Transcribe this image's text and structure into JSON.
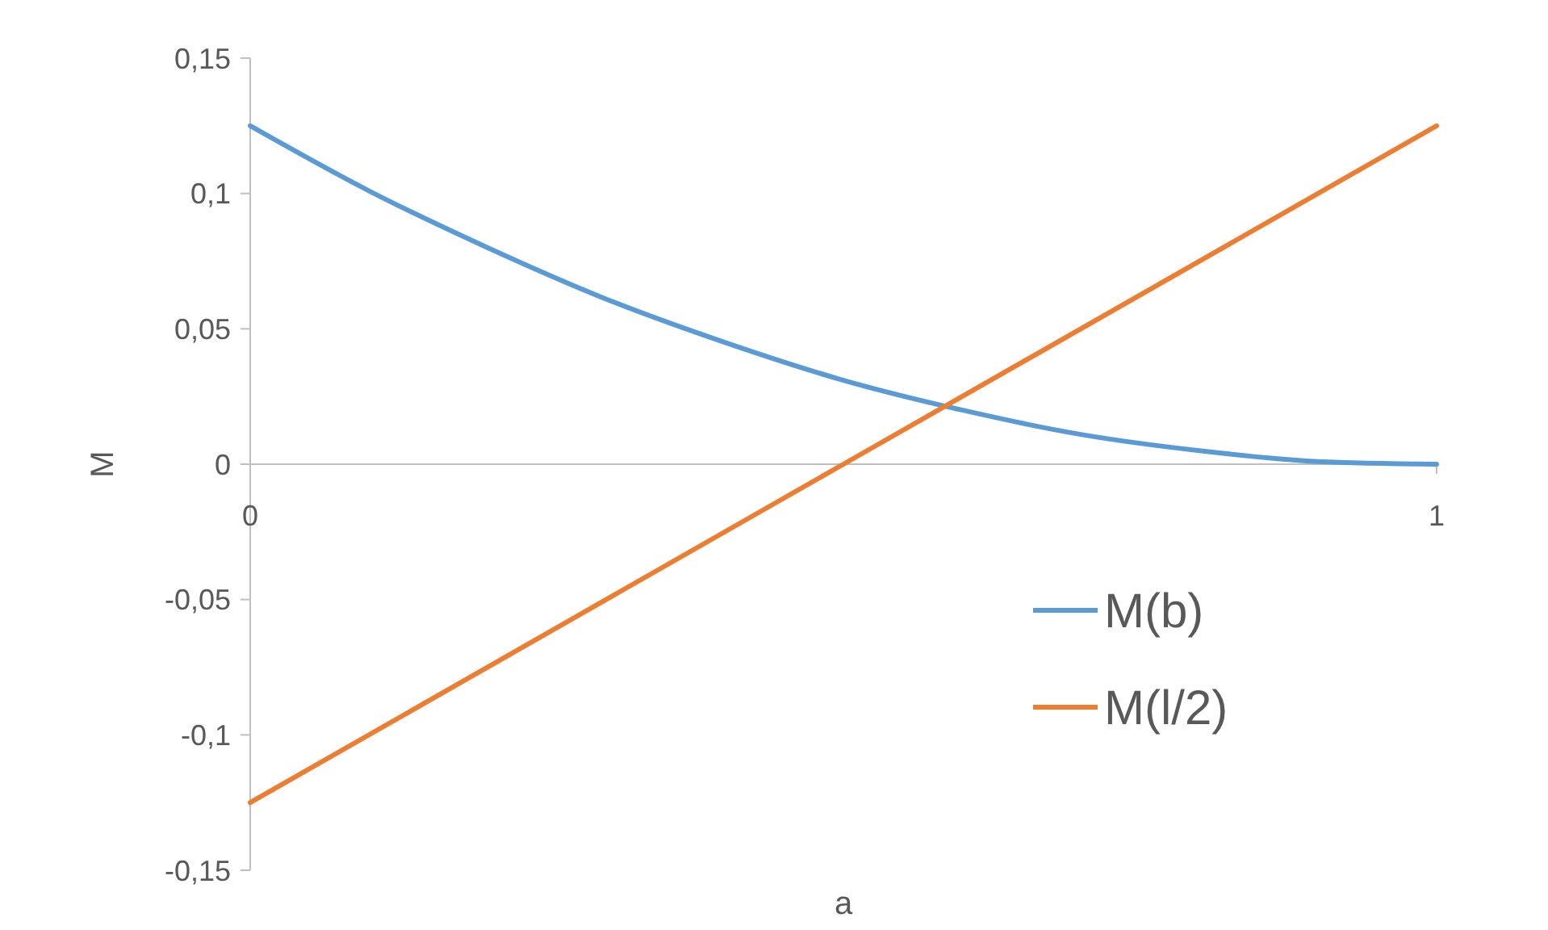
{
  "chart_data": {
    "type": "line",
    "xlabel": "a",
    "ylabel": "M",
    "xlim": [
      0,
      1
    ],
    "xticks": [
      0,
      1
    ],
    "ylim": [
      -0.15,
      0.15
    ],
    "yticks": [
      {
        "value": -0.15,
        "label": "-0,15"
      },
      {
        "value": -0.1,
        "label": "-0,1"
      },
      {
        "value": -0.05,
        "label": "-0,05"
      },
      {
        "value": 0,
        "label": "0"
      },
      {
        "value": 0.05,
        "label": "0,05"
      },
      {
        "value": 0.1,
        "label": "0,1"
      },
      {
        "value": 0.15,
        "label": "0,15"
      }
    ],
    "grid": false,
    "legend": "right",
    "marker": "none",
    "line_style": "solid",
    "series": [
      {
        "name": "M(b)",
        "color": "#5b9bd5",
        "x": [
          0,
          0.1,
          0.2,
          0.3,
          0.4,
          0.5,
          0.6,
          0.7,
          0.8,
          0.9,
          1
        ],
        "values": [
          0.125,
          0.101,
          0.08,
          0.061,
          0.045,
          0.031,
          0.02,
          0.011,
          0.005,
          0.001,
          0
        ]
      },
      {
        "name": "M(l/2)",
        "color": "#ed7d31",
        "x": [
          0,
          0.5,
          1
        ],
        "values": [
          -0.125,
          0,
          0.125
        ]
      }
    ]
  }
}
